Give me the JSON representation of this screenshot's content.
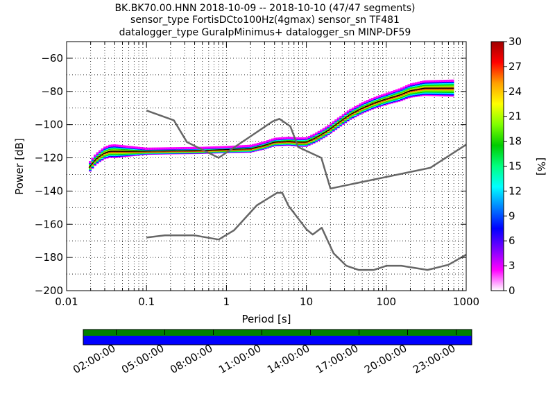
{
  "chart_data": {
    "type": "heatmap",
    "title_lines": [
      "BK.BK70.00.HNN   2018-10-09 -- 2018-10-10  (47/47 segments)",
      "sensor_type FortisDCto100Hz(4gmax) sensor_sn TF481",
      "datalogger_type GuralpMinimus+ datalogger_sn MINP-DF59"
    ],
    "xlabel": "Period [s]",
    "ylabel": "Power [dB]",
    "xscale": "log",
    "xlim": [
      0.01,
      1000
    ],
    "ylim": [
      -200,
      -50
    ],
    "xticks": [
      {
        "v": 0.01,
        "label": "0.01"
      },
      {
        "v": 0.1,
        "label": "0.1"
      },
      {
        "v": 1,
        "label": "1"
      },
      {
        "v": 10,
        "label": "10"
      },
      {
        "v": 100,
        "label": "100"
      },
      {
        "v": 1000,
        "label": "1000"
      }
    ],
    "yticks": [
      {
        "v": -60,
        "label": "−60"
      },
      {
        "v": -80,
        "label": "−80"
      },
      {
        "v": -100,
        "label": "−100"
      },
      {
        "v": -120,
        "label": "−120"
      },
      {
        "v": -140,
        "label": "−140"
      },
      {
        "v": -160,
        "label": "−160"
      },
      {
        "v": -180,
        "label": "−180"
      },
      {
        "v": -200,
        "label": "−200"
      }
    ],
    "grid": true,
    "noise_models": [
      {
        "points": [
          [
            0.1,
            -91.5
          ],
          [
            0.22,
            -97.4
          ],
          [
            0.32,
            -110.5
          ],
          [
            0.8,
            -120
          ],
          [
            3.8,
            -98
          ],
          [
            4.6,
            -96.5
          ],
          [
            6.3,
            -101
          ],
          [
            7.9,
            -113.5
          ],
          [
            15.4,
            -120
          ],
          [
            20,
            -138.5
          ],
          [
            354.8,
            -126
          ],
          [
            1000,
            -112
          ]
        ]
      },
      {
        "points": [
          [
            0.1,
            -168
          ],
          [
            0.17,
            -166.7
          ],
          [
            0.4,
            -166.7
          ],
          [
            0.8,
            -169.2
          ],
          [
            1.24,
            -163.7
          ],
          [
            2.4,
            -148.6
          ],
          [
            4.3,
            -141.1
          ],
          [
            5,
            -141.1
          ],
          [
            6,
            -149
          ],
          [
            10,
            -163
          ],
          [
            12,
            -166.2
          ],
          [
            15.6,
            -162.1
          ],
          [
            21.9,
            -177.5
          ],
          [
            31.6,
            -185
          ],
          [
            45,
            -187.5
          ],
          [
            70,
            -187.5
          ],
          [
            101,
            -185
          ],
          [
            154,
            -185
          ],
          [
            328,
            -187.5
          ],
          [
            600,
            -184.4
          ],
          [
            1000,
            -178.3
          ]
        ]
      }
    ],
    "psd_band": {
      "points": [
        [
          0.019,
          -126
        ],
        [
          0.023,
          -121
        ],
        [
          0.026,
          -119
        ],
        [
          0.03,
          -117
        ],
        [
          0.035,
          -116
        ],
        [
          0.05,
          -116
        ],
        [
          0.1,
          -116
        ],
        [
          0.5,
          -115.5
        ],
        [
          1,
          -115
        ],
        [
          2,
          -114.5
        ],
        [
          3,
          -112.5
        ],
        [
          4,
          -110.5
        ],
        [
          6,
          -110
        ],
        [
          8,
          -110.5
        ],
        [
          10,
          -110.5
        ],
        [
          13,
          -108
        ],
        [
          18,
          -104
        ],
        [
          25,
          -99
        ],
        [
          35,
          -94
        ],
        [
          50,
          -90
        ],
        [
          70,
          -87
        ],
        [
          100,
          -84.5
        ],
        [
          150,
          -82
        ],
        [
          200,
          -79.5
        ],
        [
          300,
          -78
        ],
        [
          400,
          -78
        ],
        [
          700,
          -78
        ]
      ],
      "spread": [
        [
          0.019,
          2.5
        ],
        [
          0.04,
          3.5
        ],
        [
          0.1,
          1.5
        ],
        [
          1,
          1.5
        ],
        [
          5,
          2
        ],
        [
          20,
          2.5
        ],
        [
          100,
          3
        ],
        [
          300,
          4
        ],
        [
          700,
          4.5
        ]
      ],
      "mode_color": "#000000"
    },
    "colorbar": {
      "label": "[%]",
      "range": [
        0,
        30
      ],
      "ticks": [
        {
          "v": 0,
          "label": "0"
        },
        {
          "v": 3,
          "label": "3"
        },
        {
          "v": 6,
          "label": "6"
        },
        {
          "v": 9,
          "label": "9"
        },
        {
          "v": 12,
          "label": "12"
        },
        {
          "v": 15,
          "label": "15"
        },
        {
          "v": 18,
          "label": "18"
        },
        {
          "v": 21,
          "label": "21"
        },
        {
          "v": 24,
          "label": "24"
        },
        {
          "v": 27,
          "label": "27"
        },
        {
          "v": 30,
          "label": "30"
        }
      ],
      "colors": [
        "#ffffff",
        "#ff00ff",
        "#7a00ff",
        "#0000ff",
        "#0080ff",
        "#00ffff",
        "#00ff80",
        "#00cc00",
        "#80ff00",
        "#ffff00",
        "#ffa000",
        "#ff0000",
        "#a00000"
      ]
    },
    "time_axis": {
      "labels": [
        "02:00:00",
        "05:00:00",
        "08:00:00",
        "11:00:00",
        "14:00:00",
        "17:00:00",
        "20:00:00",
        "23:00:00"
      ],
      "covered_color": "#008000",
      "data_color": "#0000ff"
    }
  }
}
